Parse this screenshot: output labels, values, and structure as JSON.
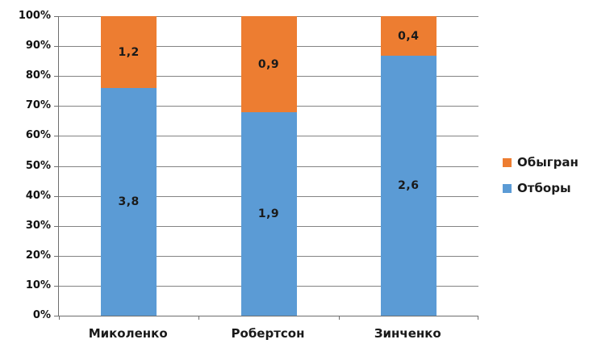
{
  "chart_data": {
    "type": "bar",
    "subtype": "100-percent-stacked-column",
    "title": "",
    "categories": [
      "Миколенко",
      "Робертсон",
      "Зинченко"
    ],
    "series": [
      {
        "name": "Отборы",
        "color": "#5B9BD5",
        "values": [
          3.8,
          1.9,
          2.6
        ],
        "labels": [
          "3,8",
          "1,9",
          "2,6"
        ]
      },
      {
        "name": "Обыгран",
        "color": "#ED7D31",
        "values": [
          1.2,
          0.9,
          0.4
        ],
        "labels": [
          "1,2",
          "0,9",
          "0,4"
        ]
      }
    ],
    "stack_percentages": [
      {
        "category": "Миколенко",
        "Отборы": 76.0,
        "Обыгран": 24.0
      },
      {
        "category": "Робертсон",
        "Отборы": 67.9,
        "Обыгран": 32.1
      },
      {
        "category": "Зинченко",
        "Отборы": 86.7,
        "Обыгран": 13.3
      }
    ],
    "y_axis": {
      "min": 0,
      "max": 100,
      "step": 10,
      "tick_labels": [
        "0%",
        "10%",
        "20%",
        "30%",
        "40%",
        "50%",
        "60%",
        "70%",
        "80%",
        "90%",
        "100%"
      ]
    },
    "legend": {
      "position": "right",
      "entries": [
        {
          "label": "Обыгран",
          "color": "#ED7D31"
        },
        {
          "label": "Отборы",
          "color": "#5B9BD5"
        }
      ]
    },
    "grid": true,
    "colors": {
      "gridline": "#848484",
      "axis": "#6e6e6e",
      "label_text": "#1a1a1a",
      "background": "#ffffff"
    }
  }
}
